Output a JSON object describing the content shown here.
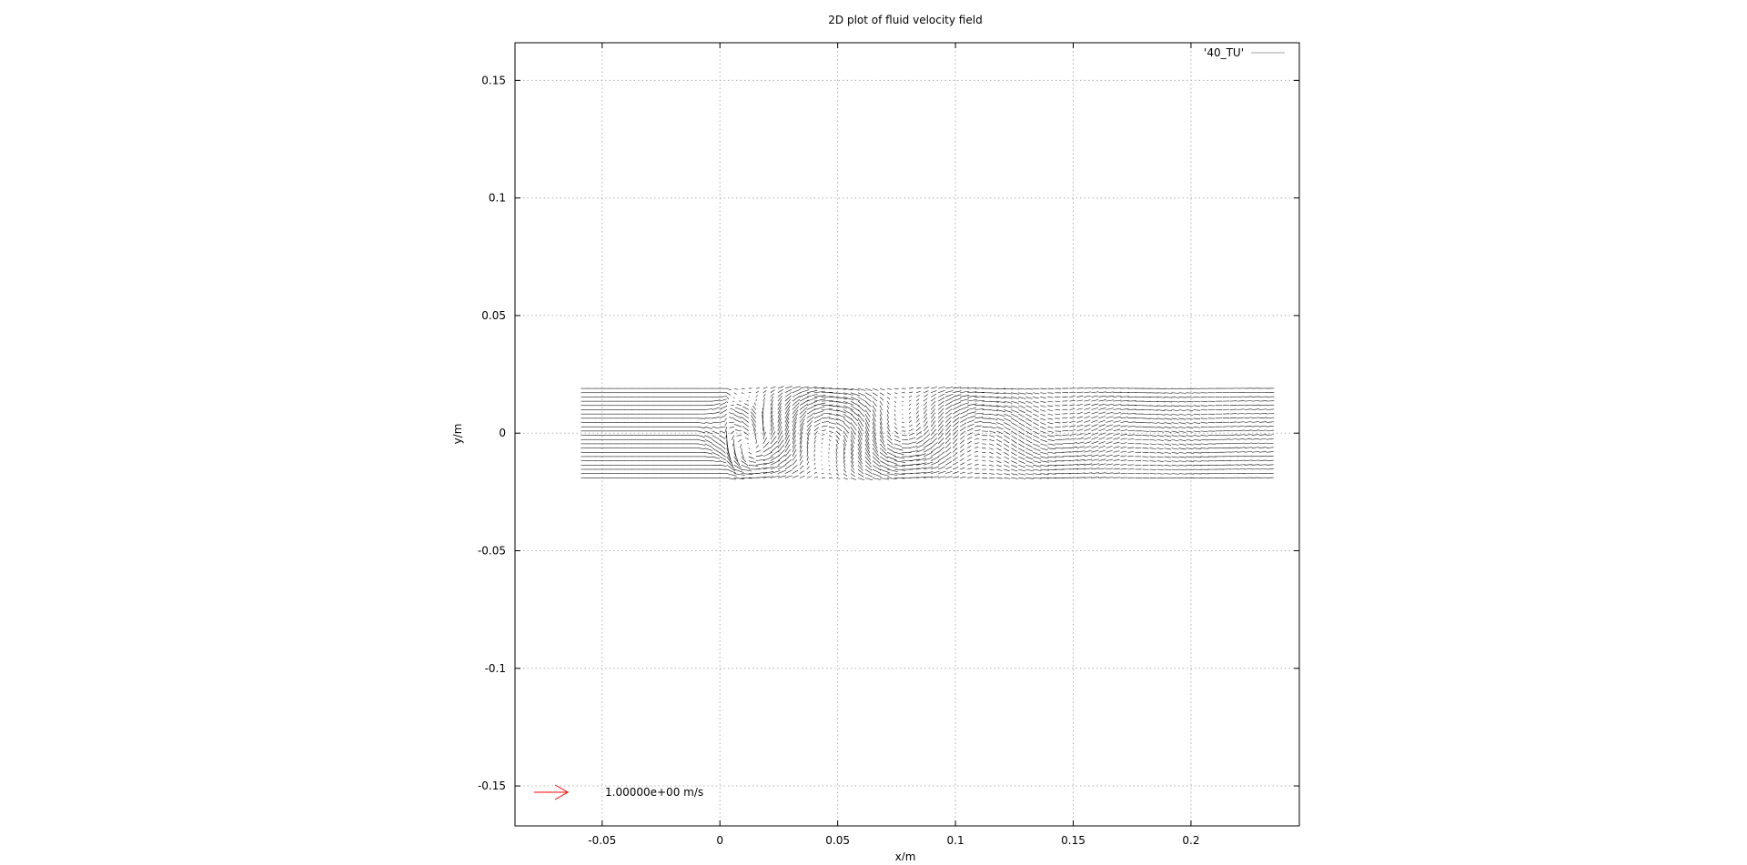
{
  "chart_data": {
    "type": "vector_field",
    "title": "2D plot of fluid velocity field",
    "xlabel": "x/m",
    "ylabel": "y/m",
    "xlim": [
      -0.087,
      0.246
    ],
    "ylim": [
      -0.167,
      0.166
    ],
    "xticks": [
      -0.05,
      0,
      0.05,
      0.1,
      0.15,
      0.2
    ],
    "xtick_labels": [
      "-0.05",
      "0",
      "0.05",
      "0.1",
      "0.15",
      "0.2"
    ],
    "yticks": [
      -0.15,
      -0.1,
      -0.05,
      0,
      0.05,
      0.1,
      0.15
    ],
    "ytick_labels": [
      "-0.15",
      "-0.1",
      "-0.05",
      "0",
      "0.05",
      "0.1",
      "0.15"
    ],
    "grid": true,
    "legend": {
      "position": "top-right",
      "entries": [
        {
          "label": "'40_TU'",
          "color": "#a0a0a0"
        }
      ]
    },
    "field": {
      "x_range": [
        -0.059,
        0.232
      ],
      "y_range": [
        -0.019,
        0.019
      ],
      "nx": 95,
      "ny": 22,
      "free_stream_velocity": 1.0,
      "obstacle_center": [
        0.005,
        0.0
      ],
      "vector_color": "#000000"
    },
    "reference_arrow": {
      "label": "1.00000e+00 m/s",
      "magnitude": 1.0,
      "color": "#ff0000"
    }
  }
}
